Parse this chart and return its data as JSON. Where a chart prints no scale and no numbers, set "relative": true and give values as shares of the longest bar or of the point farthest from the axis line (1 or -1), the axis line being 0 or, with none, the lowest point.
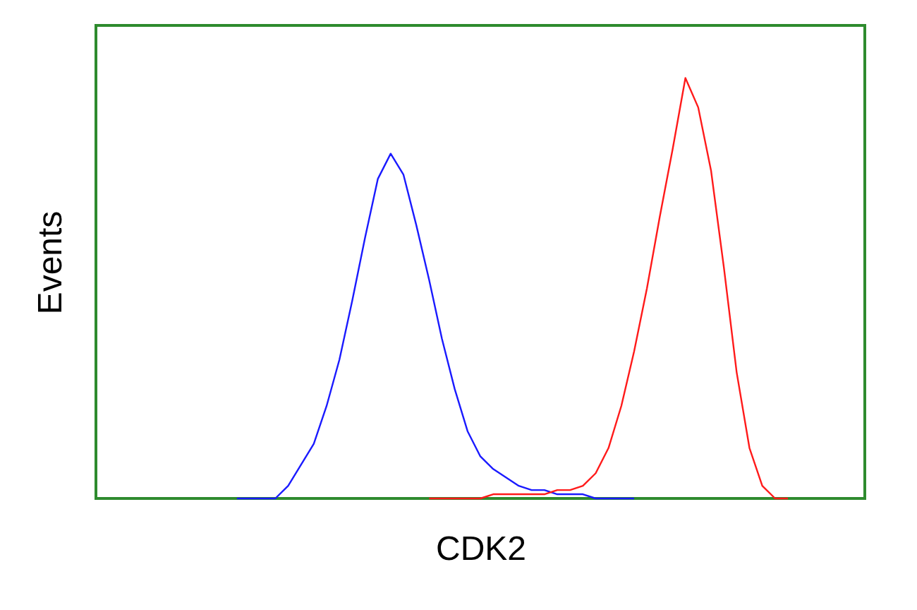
{
  "chart_data": {
    "type": "line",
    "xlabel": "CDK2",
    "ylabel": "Events",
    "relative": true,
    "grid": false,
    "marker": "none",
    "line_style": "solid",
    "categories": [
      null,
      null,
      null,
      null,
      null,
      null,
      null,
      null,
      null,
      null,
      null,
      null,
      null,
      null,
      null,
      null,
      null,
      null,
      null,
      null,
      null,
      null,
      null,
      null,
      null,
      null,
      null,
      null,
      null,
      null,
      null,
      null,
      null,
      null,
      null,
      null,
      null,
      null,
      null,
      null,
      null,
      null,
      null,
      null,
      null,
      null,
      null,
      null,
      null,
      null,
      null,
      null,
      null,
      null,
      null,
      null,
      null,
      null,
      null,
      null,
      null
    ],
    "series": [
      {
        "color": "#1a1aff",
        "values": [
          null,
          null,
          null,
          null,
          null,
          null,
          null,
          null,
          null,
          null,
          null,
          0,
          0,
          0,
          0,
          0.03,
          0.08,
          0.13,
          0.22,
          0.33,
          0.47,
          0.62,
          0.76,
          0.82,
          0.77,
          0.65,
          0.52,
          0.38,
          0.26,
          0.16,
          0.1,
          0.07,
          0.05,
          0.03,
          0.02,
          0.02,
          0.01,
          0.01,
          0.01,
          0,
          0,
          0,
          0,
          null,
          null,
          null,
          null,
          null,
          null,
          null,
          null,
          null,
          null,
          null,
          null,
          null,
          null,
          null,
          null,
          null,
          null
        ]
      },
      {
        "color": "#ff1a1a",
        "values": [
          null,
          null,
          null,
          null,
          null,
          null,
          null,
          null,
          null,
          null,
          null,
          null,
          null,
          null,
          null,
          null,
          null,
          null,
          null,
          null,
          null,
          null,
          null,
          null,
          null,
          null,
          0,
          0,
          0,
          0,
          0,
          0.01,
          0.01,
          0.01,
          0.01,
          0.01,
          0.02,
          0.02,
          0.03,
          0.06,
          0.12,
          0.22,
          0.35,
          0.5,
          0.67,
          0.83,
          1.0,
          0.93,
          0.78,
          0.55,
          0.3,
          0.12,
          0.03,
          0,
          0,
          null,
          null,
          null,
          null,
          null,
          null
        ]
      }
    ]
  }
}
